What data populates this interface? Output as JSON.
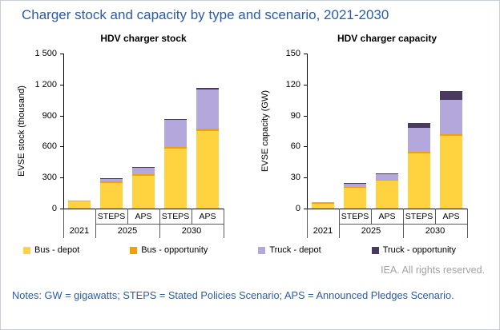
{
  "page": {
    "title": "Charger stock and capacity by type and scenario, 2021-2030",
    "credit": "IEA. All rights reserved.",
    "notes": "Notes: GW = gigawatts; STEPS = Stated Policies Scenario; APS = Announced Pledges Scenario."
  },
  "colors": {
    "title_blue": "#2a5caa",
    "bus_depot": "#ffd23f",
    "bus_opportunity": "#f2a007",
    "truck_depot": "#b4a7dc",
    "truck_opportunity": "#4b3a60"
  },
  "legend": [
    {
      "label": "Bus - depot",
      "color": "#ffd23f"
    },
    {
      "label": "Bus - opportunity",
      "color": "#f2a007"
    },
    {
      "label": "Truck - depot",
      "color": "#b4a7dc"
    },
    {
      "label": "Truck - opportunity",
      "color": "#4b3a60"
    }
  ],
  "chart_data": [
    {
      "type": "bar",
      "stacked": true,
      "title": "HDV charger stock",
      "ylabel": "EVSE stock (thousand)",
      "ylim": [
        0,
        1500
      ],
      "yticks": [
        {
          "value": 0,
          "label": "0"
        },
        {
          "value": 300,
          "label": "300"
        },
        {
          "value": 600,
          "label": "600"
        },
        {
          "value": 900,
          "label": "900"
        },
        {
          "value": 1200,
          "label": "1 200"
        },
        {
          "value": 1500,
          "label": "1 500"
        }
      ],
      "categories": [
        "2021",
        "STEPS",
        "APS",
        "STEPS",
        "APS"
      ],
      "sub_labels": [
        "",
        "STEPS",
        "APS",
        "STEPS",
        "APS"
      ],
      "groups": [
        {
          "label": "2021",
          "span": 1
        },
        {
          "label": "2025",
          "span": 2
        },
        {
          "label": "2030",
          "span": 2
        }
      ],
      "series": [
        {
          "name": "Bus - depot",
          "color": "#ffd23f",
          "values": [
            70,
            250,
            320,
            580,
            750
          ]
        },
        {
          "name": "Bus - opportunity",
          "color": "#f2a007",
          "values": [
            5,
            10,
            15,
            15,
            20
          ]
        },
        {
          "name": "Truck - depot",
          "color": "#b4a7dc",
          "values": [
            2,
            30,
            60,
            260,
            380
          ]
        },
        {
          "name": "Truck - opportunity",
          "color": "#4b3a60",
          "values": [
            0,
            2,
            5,
            10,
            15
          ]
        }
      ]
    },
    {
      "type": "bar",
      "stacked": true,
      "title": "HDV charger capacity",
      "ylabel": "EVSE capacity (GW)",
      "ylim": [
        0,
        150
      ],
      "yticks": [
        {
          "value": 0,
          "label": "0"
        },
        {
          "value": 30,
          "label": "30"
        },
        {
          "value": 60,
          "label": "60"
        },
        {
          "value": 90,
          "label": "90"
        },
        {
          "value": 120,
          "label": "120"
        },
        {
          "value": 150,
          "label": "150"
        }
      ],
      "categories": [
        "2021",
        "STEPS",
        "APS",
        "STEPS",
        "APS"
      ],
      "sub_labels": [
        "",
        "STEPS",
        "APS",
        "STEPS",
        "APS"
      ],
      "groups": [
        {
          "label": "2021",
          "span": 1
        },
        {
          "label": "2025",
          "span": 2
        },
        {
          "label": "2030",
          "span": 2
        }
      ],
      "series": [
        {
          "name": "Bus - depot",
          "color": "#ffd23f",
          "values": [
            5,
            20,
            27,
            53,
            70
          ]
        },
        {
          "name": "Bus - opportunity",
          "color": "#f2a007",
          "values": [
            0.5,
            1,
            1,
            2,
            2
          ]
        },
        {
          "name": "Truck - depot",
          "color": "#b4a7dc",
          "values": [
            0.5,
            3,
            5,
            23,
            33
          ]
        },
        {
          "name": "Truck - opportunity",
          "color": "#4b3a60",
          "values": [
            0,
            0.5,
            1,
            5,
            9
          ]
        }
      ]
    }
  ]
}
